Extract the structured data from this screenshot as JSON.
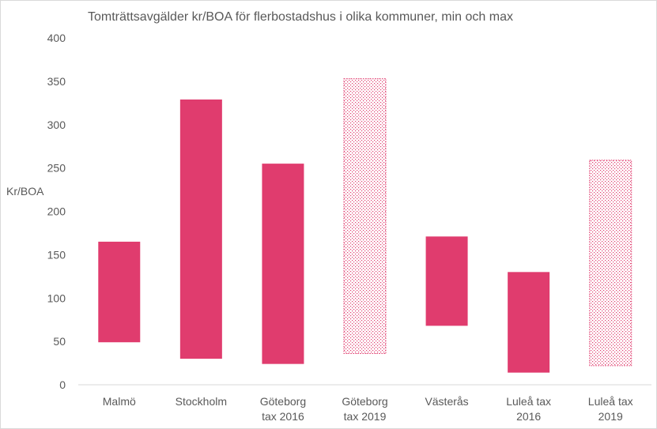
{
  "chart_data": {
    "type": "bar",
    "title": "Tomträttsavgälder kr/BOA för flerbostadshus i olika kommuner, min och max",
    "xlabel": "",
    "ylabel": "Kr/BOA",
    "ylim": [
      0,
      400
    ],
    "yticks": [
      "0",
      "50",
      "100",
      "150",
      "200",
      "250",
      "300",
      "350",
      "400"
    ],
    "grid": false,
    "categories": [
      [
        "Malmö"
      ],
      [
        "Stockholm"
      ],
      [
        "Göteborg",
        "tax 2016"
      ],
      [
        "Göteborg",
        "tax 2019"
      ],
      [
        "Västerås"
      ],
      [
        "Luleå tax",
        "2016"
      ],
      [
        "Luleå tax",
        "2019"
      ]
    ],
    "series": [
      {
        "min": [
          49,
          30,
          24,
          36,
          68,
          14,
          22
        ],
        "max": [
          165,
          329,
          255,
          353,
          171,
          130,
          259
        ],
        "style": [
          "solid",
          "solid",
          "solid",
          "dotted",
          "solid",
          "solid",
          "dotted"
        ]
      }
    ],
    "colors": {
      "bar": "#e03c6e",
      "axis": "#d9d9d9",
      "text": "#595959"
    }
  }
}
